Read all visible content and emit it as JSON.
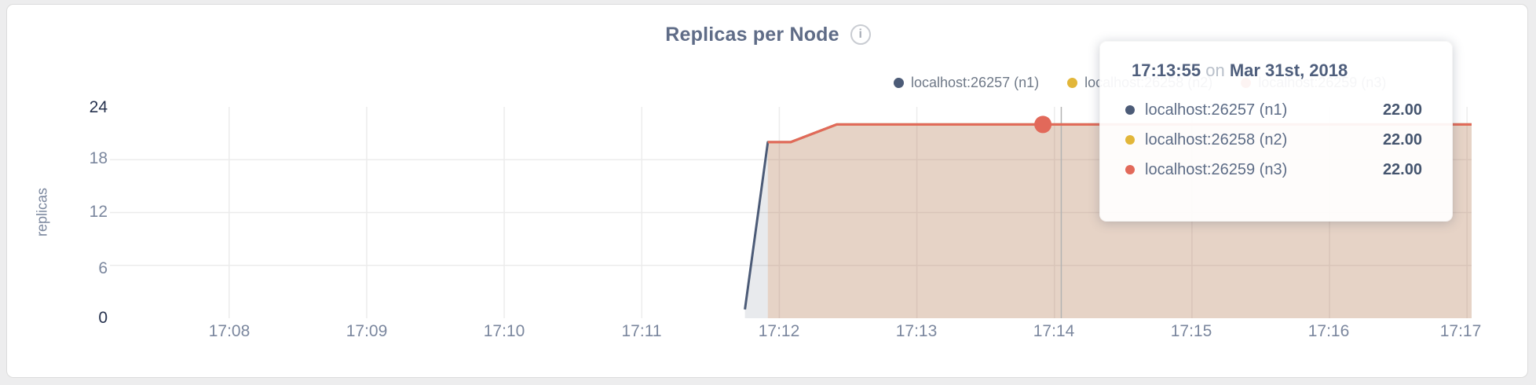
{
  "page": {
    "background": "#ededee"
  },
  "header": {
    "title": "Replicas per Node",
    "info_icon_glyph": "i"
  },
  "colors": {
    "n1": "#4c5b77",
    "n2": "#e2b639",
    "n3": "#e2695a",
    "grid": "#ececec",
    "guideline": "#b3b3b3",
    "axis_text": "#7b879e",
    "axis_text_dark": "#26324e",
    "title_text": "#5f6c87"
  },
  "legend": {
    "items": [
      {
        "label": "localhost:26257 (n1)",
        "color": "#4c5b77"
      },
      {
        "label": "localhost:26258 (n2)",
        "color": "#e2b639"
      },
      {
        "label": "localhost:26259 (n3)",
        "color": "#e2695a"
      }
    ]
  },
  "tooltip": {
    "time": "17:13:55",
    "on_word": "on",
    "date": "Mar 31st, 2018",
    "rows": [
      {
        "label": "localhost:26257 (n1)",
        "value": "22.00",
        "color": "#4c5b77"
      },
      {
        "label": "localhost:26258 (n2)",
        "value": "22.00",
        "color": "#e2b639"
      },
      {
        "label": "localhost:26259 (n3)",
        "value": "22.00",
        "color": "#e2695a"
      }
    ]
  },
  "chart_data": {
    "type": "area",
    "title": "Replicas per Node",
    "xlabel": "",
    "ylabel": "replicas",
    "ylim": [
      0,
      24
    ],
    "ytick_values": [
      24,
      18,
      12,
      6,
      0
    ],
    "ytick_labels": [
      "24",
      "18",
      "12",
      "6",
      "0"
    ],
    "ytick_emphasis": [
      true,
      false,
      false,
      false,
      true
    ],
    "ygrid_values": [
      18,
      12,
      6
    ],
    "xlim_seconds": [
      -52,
      542
    ],
    "x_reference_time": "17:08:00",
    "xticks_seconds": [
      0,
      60,
      120,
      180,
      240,
      300,
      360,
      420,
      480,
      540
    ],
    "xtick_labels": [
      "17:08",
      "17:09",
      "17:10",
      "17:11",
      "17:12",
      "17:13",
      "17:14",
      "17:15",
      "17:16",
      "17:17"
    ],
    "grid": true,
    "legend_position": "top-right",
    "series": [
      {
        "name": "localhost:26257 (n1)",
        "color": "#4c5b77",
        "fill": "rgba(76,91,119,0.13)",
        "points": [
          [
            225,
            1
          ],
          [
            235,
            20
          ],
          [
            245,
            20
          ],
          [
            265,
            22
          ],
          [
            542,
            22
          ]
        ]
      },
      {
        "name": "localhost:26258 (n2)",
        "color": "#e2b639",
        "fill": "rgba(226,182,57,0.10)",
        "points": [
          [
            235,
            20
          ],
          [
            245,
            20
          ],
          [
            265,
            22
          ],
          [
            542,
            22
          ]
        ]
      },
      {
        "name": "localhost:26259 (n3)",
        "color": "#e2695a",
        "fill": "rgba(226,105,90,0.15)",
        "points": [
          [
            235,
            20
          ],
          [
            245,
            20
          ],
          [
            265,
            22
          ],
          [
            542,
            22
          ]
        ]
      }
    ],
    "hover": {
      "time_label": "17:13:55",
      "time_seconds": 355,
      "guideline_seconds": 363,
      "value": 22,
      "series": "localhost:26259 (n3)",
      "dot_color": "#e2695a"
    }
  }
}
